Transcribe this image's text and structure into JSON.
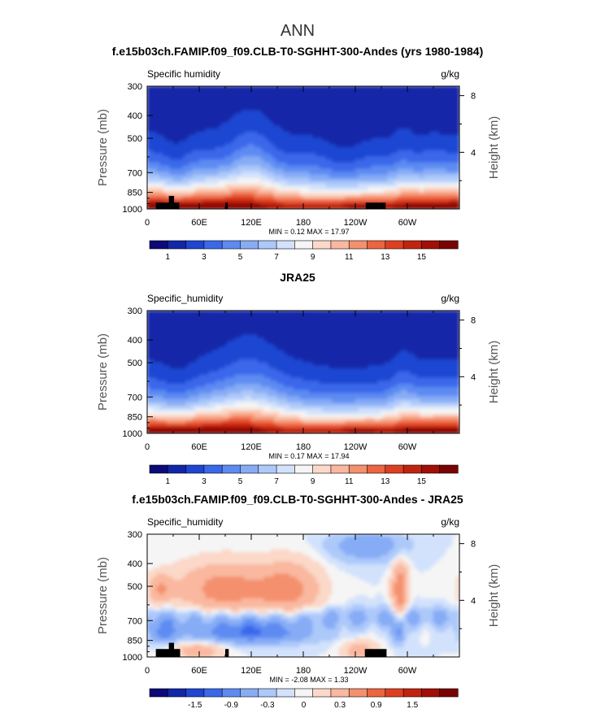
{
  "figure": {
    "main_title": "ANN"
  },
  "colors": {
    "humidity_scale": [
      "#0a0a7a",
      "#1226a8",
      "#1e46d2",
      "#3a68ea",
      "#5d8bf2",
      "#86acf6",
      "#adc9fa",
      "#d2e2fc",
      "#f5f5f5",
      "#fbd8c8",
      "#f9b89f",
      "#f4906d",
      "#ec6440",
      "#de3f20",
      "#c2230f",
      "#a10f06",
      "#7a0303"
    ],
    "diff_scale": [
      "#0a0a7a",
      "#1226a8",
      "#1e46d2",
      "#3a68ea",
      "#5d8bf2",
      "#86acf6",
      "#adc9fa",
      "#d2e2fc",
      "#f5f5f5",
      "#fbd8c8",
      "#f9b89f",
      "#f4906d",
      "#ec6440",
      "#de3f20",
      "#c2230f",
      "#a10f06",
      "#7a0303"
    ],
    "terrain": "#000000"
  },
  "chart_data": [
    {
      "type": "contour",
      "title": "f.e15b03ch.FAMIP.f09_f09.CLB-T0-SGHHT-300-Andes (yrs 1980-1984)",
      "left_label": "Specific humidity",
      "right_label": "g/kg",
      "ylabel": "Pressure (mb)",
      "ylabel_right": "Height (km)",
      "x_ticks": [
        "0",
        "60E",
        "120E",
        "180",
        "120W",
        "60W"
      ],
      "x_tick_values": [
        0,
        60,
        120,
        180,
        240,
        300
      ],
      "xlim": [
        0,
        360
      ],
      "y_ticks": [
        "300",
        "400",
        "500",
        "700",
        "850",
        "1000"
      ],
      "y_tick_values": [
        300,
        400,
        500,
        700,
        850,
        1000
      ],
      "ylim": [
        300,
        1000
      ],
      "y_scale": "log",
      "right_ticks": [
        "8",
        "4"
      ],
      "right_tick_values": [
        8,
        4
      ],
      "stats_text": "MIN =    0.12   MAX =   17.97",
      "min": 0.12,
      "max": 17.97,
      "colorbar_labels": [
        "1",
        "3",
        "5",
        "7",
        "9",
        "11",
        "13",
        "15"
      ],
      "colorbar_levels": [
        0,
        1,
        2,
        3,
        4,
        5,
        6,
        7,
        8,
        9,
        10,
        11,
        12,
        13,
        14,
        15,
        16,
        17
      ]
    },
    {
      "type": "contour",
      "title": "JRA25",
      "left_label": "Specific_humidity",
      "right_label": "g/kg",
      "ylabel": "Pressure (mb)",
      "ylabel_right": "Height (km)",
      "x_ticks": [
        "0",
        "60E",
        "120E",
        "180",
        "120W",
        "60W"
      ],
      "x_tick_values": [
        0,
        60,
        120,
        180,
        240,
        300
      ],
      "xlim": [
        0,
        360
      ],
      "y_ticks": [
        "300",
        "400",
        "500",
        "700",
        "850",
        "1000"
      ],
      "y_tick_values": [
        300,
        400,
        500,
        700,
        850,
        1000
      ],
      "ylim": [
        300,
        1000
      ],
      "y_scale": "log",
      "right_ticks": [
        "8",
        "4"
      ],
      "right_tick_values": [
        8,
        4
      ],
      "stats_text": "MIN =    0.17   MAX =   17.94",
      "min": 0.17,
      "max": 17.94,
      "colorbar_labels": [
        "1",
        "3",
        "5",
        "7",
        "9",
        "11",
        "13",
        "15"
      ],
      "colorbar_levels": [
        0,
        1,
        2,
        3,
        4,
        5,
        6,
        7,
        8,
        9,
        10,
        11,
        12,
        13,
        14,
        15,
        16,
        17
      ]
    },
    {
      "type": "contour",
      "title": "f.e15b03ch.FAMIP.f09_f09.CLB-T0-SGHHT-300-Andes - JRA25",
      "left_label": "Specific_humidity",
      "right_label": "g/kg",
      "ylabel": "Pressure (mb)",
      "ylabel_right": "Height (km)",
      "x_ticks": [
        "0",
        "60E",
        "120E",
        "180",
        "120W",
        "60W"
      ],
      "x_tick_values": [
        0,
        60,
        120,
        180,
        240,
        300
      ],
      "xlim": [
        0,
        360
      ],
      "y_ticks": [
        "300",
        "400",
        "500",
        "700",
        "850",
        "1000"
      ],
      "y_tick_values": [
        300,
        400,
        500,
        700,
        850,
        1000
      ],
      "ylim": [
        300,
        1000
      ],
      "y_scale": "log",
      "right_ticks": [
        "8",
        "4"
      ],
      "right_tick_values": [
        8,
        4
      ],
      "stats_text": "MIN =   -2.08   MAX =    1.33",
      "min": -2.08,
      "max": 1.33,
      "colorbar_labels": [
        "-1.5",
        "-0.9",
        "-0.3",
        "0",
        "0.3",
        "0.9",
        "1.5"
      ],
      "colorbar_levels": [
        -1.8,
        -1.5,
        -1.2,
        -0.9,
        -0.6,
        -0.3,
        -0.1,
        0,
        0.1,
        0.3,
        0.6,
        0.9,
        1.2,
        1.5,
        1.8
      ]
    }
  ]
}
